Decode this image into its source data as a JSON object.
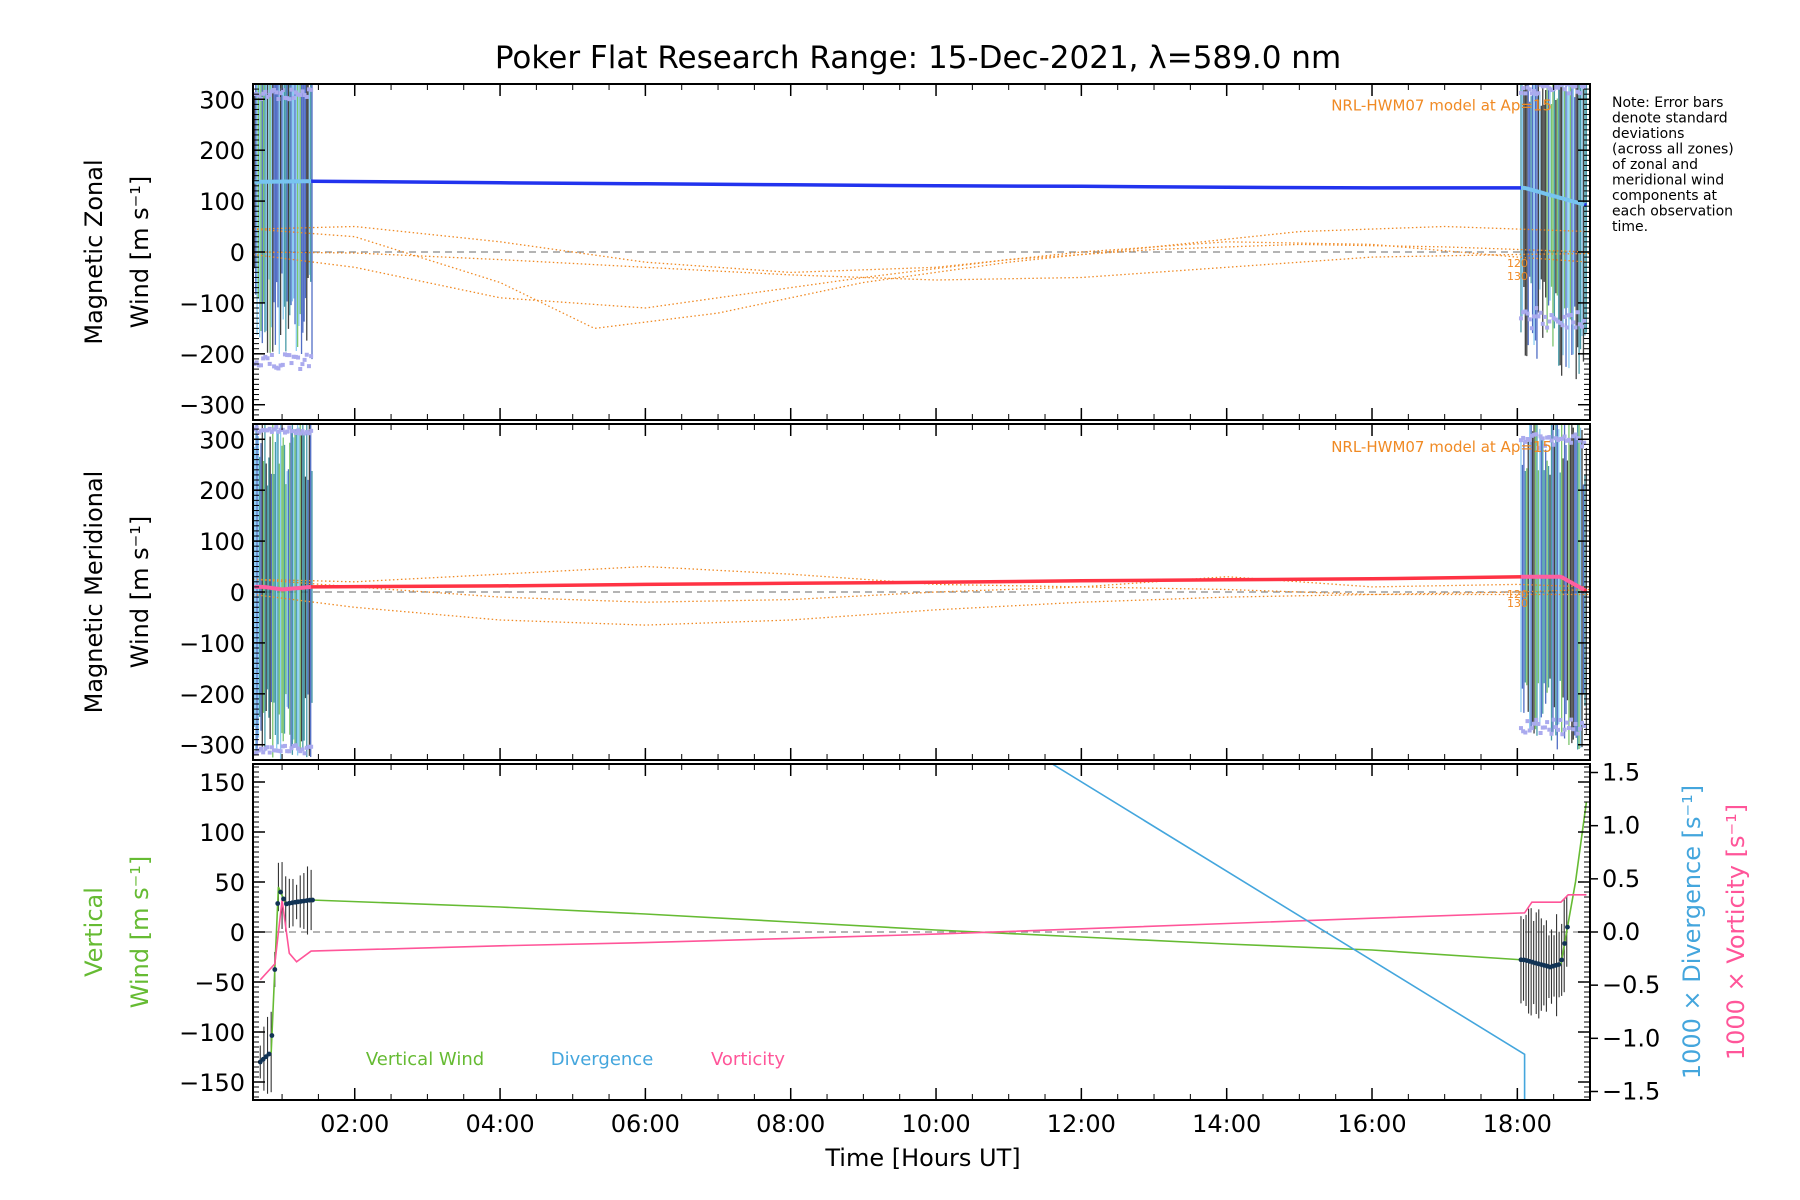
{
  "title": "Poker Flat Research Range: 15-Dec-2021, λ=589.0 nm",
  "note": [
    "Note: Error bars",
    "denote standard",
    "deviations",
    "(across all zones)",
    "of zonal and",
    "meridional wind",
    "components at",
    "each observation",
    "time."
  ],
  "colors": {
    "zonal": "#2233ee",
    "zonal_edge": "#77c4f0",
    "meridional": "#ff3344",
    "meridional_edge": "#ff5fa0",
    "scatter": "#aaaaee",
    "model": "#f08a24",
    "vertical": "#66bb33",
    "divergence": "#44a6dd",
    "vorticity": "#ff5599",
    "errorbar": "#333333",
    "errorbar_color": "#2a8a9a",
    "zero_line": "#888888"
  },
  "chart_data": [
    {
      "type": "line",
      "panel": "zonal",
      "ylabel": [
        "Magnetic Zonal",
        "Wind [m s⁻¹]"
      ],
      "ylim": [
        -330,
        330
      ],
      "yticks": [
        "300",
        "200",
        "100",
        "0",
        "−100",
        "−200",
        "−300"
      ],
      "ytick_values": [
        300,
        200,
        100,
        0,
        -100,
        -200,
        -300
      ],
      "xlim": [
        0.6,
        19.0
      ],
      "model_label": "NRL-HWM07 model at Ap=15",
      "model_heights": [
        "120",
        "130"
      ],
      "series": [
        {
          "x": [
            0.75,
            1.4,
            4,
            6,
            8,
            10,
            12,
            14,
            16,
            18.1,
            18.5,
            18.95
          ],
          "values": [
            138,
            139,
            136,
            134,
            132,
            130,
            129,
            127,
            126,
            126,
            110,
            92
          ]
        }
      ],
      "model": [
        {
          "x": [
            0.6,
            2,
            4,
            6,
            8,
            10,
            12,
            14,
            16,
            18,
            19
          ],
          "values": [
            0,
            -2,
            -15,
            -30,
            -45,
            -55,
            -50,
            -30,
            -10,
            -5,
            -3
          ]
        },
        {
          "x": [
            0.6,
            2,
            4,
            5.3,
            7,
            9,
            11,
            13,
            15,
            17,
            19
          ],
          "values": [
            45,
            30,
            -60,
            -150,
            -120,
            -60,
            -20,
            10,
            40,
            50,
            40
          ]
        },
        {
          "x": [
            0.6,
            2,
            4,
            6,
            8,
            10,
            12,
            14,
            16,
            18,
            19
          ],
          "values": [
            45,
            50,
            20,
            -20,
            -40,
            -30,
            0,
            20,
            15,
            -10,
            -20
          ]
        },
        {
          "x": [
            0.6,
            2,
            4,
            6,
            7,
            9,
            11,
            13,
            15,
            17,
            19
          ],
          "values": [
            -5,
            -30,
            -90,
            -110,
            -90,
            -50,
            -15,
            5,
            15,
            10,
            0
          ]
        }
      ]
    },
    {
      "type": "line",
      "panel": "meridional",
      "ylabel": [
        "Magnetic Meridional",
        "Wind [m s⁻¹]"
      ],
      "ylim": [
        -330,
        330
      ],
      "yticks": [
        "300",
        "200",
        "100",
        "0",
        "−100",
        "−200",
        "−300"
      ],
      "ytick_values": [
        300,
        200,
        100,
        0,
        -100,
        -200,
        -300
      ],
      "xlim": [
        0.6,
        19.0
      ],
      "model_label": "NRL-HWM07 model at Ap=15",
      "model_heights": [
        "120",
        "130"
      ],
      "series": [
        {
          "x": [
            0.75,
            1.0,
            1.4,
            4,
            6,
            8,
            10,
            12,
            14,
            16,
            18.1,
            18.6,
            18.95
          ],
          "values": [
            10,
            5,
            10,
            12,
            15,
            17,
            19,
            22,
            24,
            26,
            30,
            30,
            2
          ]
        }
      ],
      "model": [
        {
          "x": [
            0.6,
            2,
            4,
            6,
            8,
            10,
            12,
            14,
            16,
            18,
            19
          ],
          "values": [
            25,
            20,
            35,
            50,
            35,
            15,
            10,
            30,
            10,
            15,
            10
          ]
        },
        {
          "x": [
            0.6,
            2,
            4,
            6,
            8,
            10,
            12,
            14,
            16,
            18,
            19
          ],
          "values": [
            -5,
            -30,
            -55,
            -65,
            -55,
            -35,
            -20,
            -10,
            -5,
            -5,
            -5
          ]
        },
        {
          "x": [
            0.6,
            2,
            4,
            6,
            8,
            10,
            12,
            14,
            16,
            18,
            19
          ],
          "values": [
            25,
            10,
            -10,
            -20,
            -15,
            0,
            10,
            5,
            -5,
            0,
            5
          ]
        }
      ]
    },
    {
      "type": "line",
      "panel": "vertical",
      "ylabel_left": [
        "Vertical",
        "Wind [m s⁻¹]"
      ],
      "ylabel_right_1": "1000 × Divergence [s⁻¹]",
      "ylabel_right_2": "1000 × Vorticity [s⁻¹]",
      "xlabel": "Time [Hours UT]",
      "ylim": [
        -168,
        168
      ],
      "yticks": [
        "150",
        "100",
        "50",
        "0",
        "−50",
        "−100",
        "−150"
      ],
      "ytick_values": [
        150,
        100,
        50,
        0,
        -50,
        -100,
        -150
      ],
      "y2lim": [
        -1.58,
        1.58
      ],
      "y2ticks": [
        "1.5",
        "1.0",
        "0.5",
        "0.0",
        "−0.5",
        "−1.0",
        "−1.5"
      ],
      "y2tick_values": [
        1.5,
        1.0,
        0.5,
        0.0,
        -0.5,
        -1.0,
        -1.5
      ],
      "xlim": [
        0.6,
        19.0
      ],
      "xticks": [
        "02:00",
        "04:00",
        "06:00",
        "08:00",
        "10:00",
        "12:00",
        "14:00",
        "16:00",
        "18:00"
      ],
      "xtick_values": [
        2,
        4,
        6,
        8,
        10,
        12,
        14,
        16,
        18
      ],
      "legend": [
        "Vertical Wind",
        "Divergence",
        "Vorticity"
      ],
      "series": [
        {
          "name": "Vertical Wind",
          "x": [
            0.7,
            0.85,
            0.95,
            1.05,
            1.2,
            1.4,
            4,
            6,
            8,
            10,
            12,
            14,
            16,
            18.1,
            18.45,
            18.6,
            18.8,
            18.95
          ],
          "values": [
            -130,
            -120,
            45,
            28,
            30,
            32,
            25,
            18,
            10,
            2,
            -5,
            -12,
            -18,
            -28,
            -35,
            -32,
            50,
            130
          ]
        },
        {
          "name": "Divergence",
          "x": [
            11.6,
            18.1,
            18.1
          ],
          "values": [
            1.58,
            -1.15,
            -1.58
          ]
        },
        {
          "name": "Vorticity",
          "x": [
            0.7,
            0.9,
            1.0,
            1.1,
            1.2,
            1.4,
            4,
            6,
            8,
            10,
            12,
            14,
            16,
            18.1,
            18.2,
            18.6,
            18.7,
            18.95
          ],
          "values": [
            -0.45,
            -0.3,
            0.3,
            -0.2,
            -0.28,
            -0.18,
            -0.13,
            -0.1,
            -0.06,
            -0.02,
            0.03,
            0.08,
            0.13,
            0.18,
            0.28,
            0.28,
            0.35,
            0.35
          ]
        }
      ]
    }
  ]
}
